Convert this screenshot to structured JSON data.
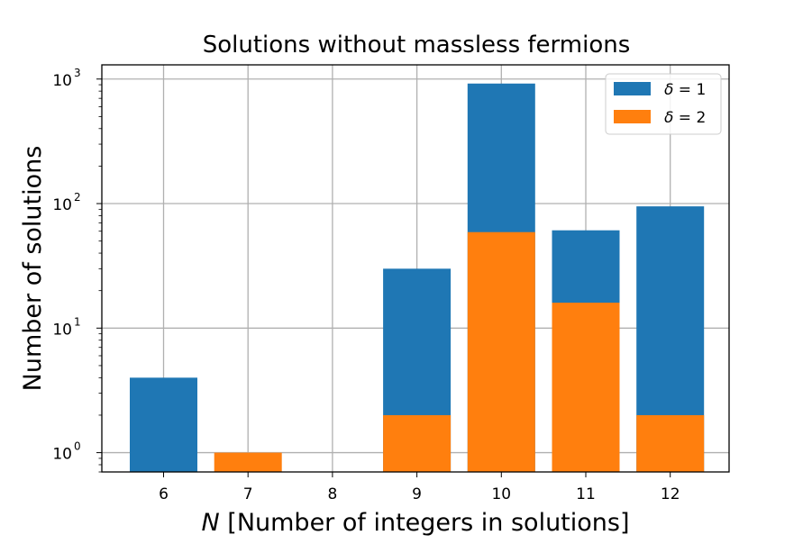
{
  "chart_data": {
    "type": "bar",
    "stacked": false,
    "title": "Solutions without massless fermions",
    "xlabel_symbol": "N",
    "xlabel_text": " [Number of integers in solutions]",
    "ylabel": "Number of solutions",
    "yscale": "log",
    "ylim": [
      0.7,
      1300
    ],
    "categories": [
      "6",
      "7",
      "8",
      "9",
      "10",
      "11",
      "12"
    ],
    "yticks": [
      {
        "value": 1,
        "mantissa": "10",
        "exp": "0"
      },
      {
        "value": 10,
        "mantissa": "10",
        "exp": "1"
      },
      {
        "value": 100,
        "mantissa": "10",
        "exp": "2"
      },
      {
        "value": 1000,
        "mantissa": "10",
        "exp": "3"
      }
    ],
    "series": [
      {
        "name_symbol": "δ",
        "name_rest": " = 1",
        "color": "#1f77b4",
        "values": [
          4,
          null,
          null,
          30,
          920,
          61,
          95
        ]
      },
      {
        "name_symbol": "δ",
        "name_rest": " = 2",
        "color": "#ff7f0e",
        "values": [
          null,
          1,
          null,
          2,
          59,
          16,
          2
        ]
      }
    ],
    "grid": true,
    "legend_position": "top-right"
  }
}
